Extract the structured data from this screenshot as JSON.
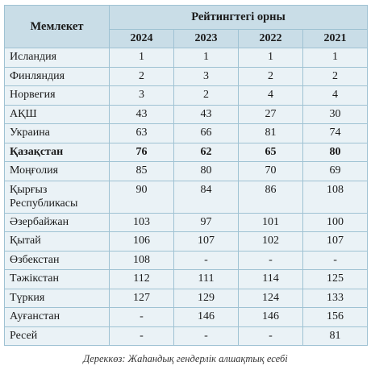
{
  "table": {
    "col_country": "Мемлекет",
    "col_rank": "Рейтингтегі орны",
    "years": [
      "2024",
      "2023",
      "2022",
      "2021"
    ],
    "rows": [
      {
        "name": "Исландия",
        "v": [
          "1",
          "1",
          "1",
          "1"
        ]
      },
      {
        "name": "Финляндия",
        "v": [
          "2",
          "3",
          "2",
          "2"
        ]
      },
      {
        "name": "Норвегия",
        "v": [
          "3",
          "2",
          "4",
          "4"
        ]
      },
      {
        "name": "АҚШ",
        "v": [
          "43",
          "43",
          "27",
          "30"
        ]
      },
      {
        "name": "Украина",
        "v": [
          "63",
          "66",
          "81",
          "74"
        ]
      },
      {
        "name": "Қазақстан",
        "v": [
          "76",
          "62",
          "65",
          "80"
        ]
      },
      {
        "name": "Моңғолия",
        "v": [
          "85",
          "80",
          "70",
          "69"
        ]
      },
      {
        "name": "Қырғыз Республикасы",
        "v": [
          "90",
          "84",
          "86",
          "108"
        ]
      },
      {
        "name": "Әзербайжан",
        "v": [
          "103",
          "97",
          "101",
          "100"
        ]
      },
      {
        "name": "Қытай",
        "v": [
          "106",
          "107",
          "102",
          "107"
        ]
      },
      {
        "name": "Өзбекстан",
        "v": [
          "108",
          "-",
          "-",
          "-"
        ]
      },
      {
        "name": "Тәжікстан",
        "v": [
          "112",
          "111",
          "114",
          "125"
        ]
      },
      {
        "name": "Түркия",
        "v": [
          "127",
          "129",
          "124",
          "133"
        ]
      },
      {
        "name": "Ауғанстан",
        "v": [
          "-",
          "146",
          "146",
          "156"
        ]
      },
      {
        "name": "Ресей",
        "v": [
          "-",
          "-",
          "-",
          "81"
        ]
      }
    ]
  },
  "source": "Дереккөз: Жаһандық гендерлік алшақтық есебі"
}
